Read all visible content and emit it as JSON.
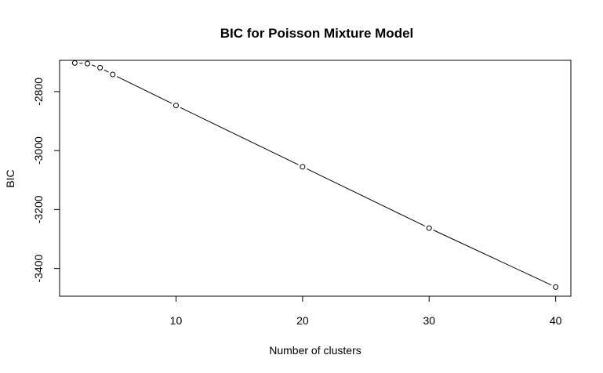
{
  "chart_data": {
    "type": "line",
    "title": "BIC for Poisson Mixture Model",
    "xlabel": "Number of clusters",
    "ylabel": "BIC",
    "x": [
      2,
      3,
      4,
      5,
      10,
      20,
      30,
      40
    ],
    "series": [
      {
        "values": [
          -2703,
          -2705,
          -2719,
          -2742,
          -2847,
          -3055,
          -3263,
          -3463
        ]
      }
    ],
    "xlim": [
      0.8,
      41.2
    ],
    "ylim": [
      -3494,
      -2694
    ],
    "xticks": [
      "10",
      "20",
      "30",
      "40"
    ],
    "yticks": [
      "-2800",
      "-3000",
      "-3200",
      "-3400"
    ],
    "grid": false,
    "colors": {
      "line": "#000000",
      "marker_stroke": "#000000",
      "marker_fill": "#ffffff"
    }
  }
}
